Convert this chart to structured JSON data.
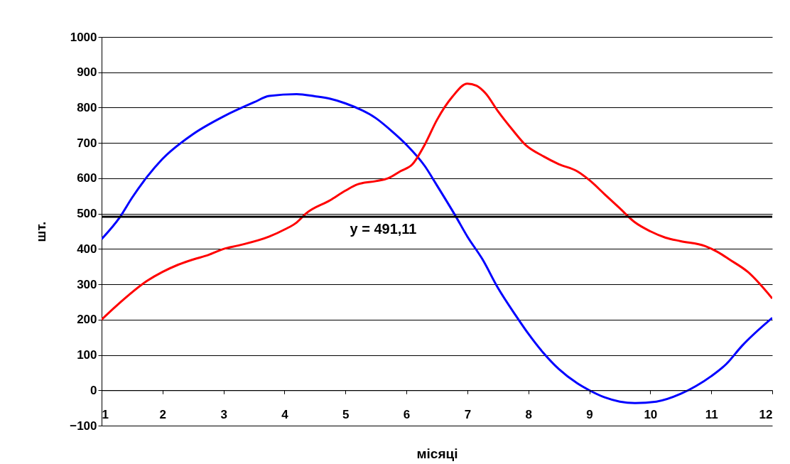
{
  "chart_data": {
    "type": "line",
    "xlabel": "місяці",
    "ylabel": "шт.",
    "xlim": [
      1,
      12
    ],
    "xticks": [
      1,
      2,
      3,
      4,
      5,
      6,
      7,
      8,
      9,
      10,
      11,
      12
    ],
    "ylim": [
      -100,
      1000
    ],
    "yticks": [
      -100,
      0,
      100,
      200,
      300,
      400,
      500,
      600,
      700,
      800,
      900,
      1000
    ],
    "grid": "y",
    "line_style": "solid",
    "series": [
      {
        "color": "#0000ff",
        "x": [
          1,
          1.3,
          1.5,
          1.75,
          2,
          2.5,
          3,
          3.5,
          3.75,
          4.2,
          4.5,
          4.75,
          5,
          5.5,
          5.75,
          6,
          6.3,
          6.5,
          6.8,
          7,
          7.25,
          7.5,
          7.8,
          8,
          8.25,
          8.5,
          8.8,
          9,
          9.25,
          9.5,
          9.75,
          10.1,
          10.5,
          10.75,
          11,
          11.25,
          11.5,
          12
        ],
        "values": [
          428,
          490,
          545,
          605,
          655,
          725,
          775,
          815,
          833,
          838,
          832,
          825,
          812,
          770,
          735,
          695,
          635,
          580,
          495,
          435,
          370,
          290,
          210,
          160,
          105,
          60,
          20,
          0,
          -20,
          -32,
          -36,
          -32,
          -10,
          12,
          40,
          75,
          125,
          205
        ]
      },
      {
        "color": "#ff0000",
        "x": [
          1,
          1.25,
          1.75,
          2,
          2.25,
          2.5,
          2.75,
          3,
          3.25,
          3.75,
          4,
          4.2,
          4.35,
          4.75,
          5,
          5.2,
          5.5,
          5.7,
          5.9,
          6.1,
          6.3,
          6.5,
          6.75,
          7,
          7.15,
          7.3,
          7.5,
          7.75,
          7.95,
          8.25,
          8.5,
          8.8,
          9,
          9.25,
          9.5,
          9.75,
          10,
          10.25,
          10.5,
          10.9,
          11.1,
          11.3,
          11.6,
          12
        ],
        "values": [
          200,
          240,
          310,
          335,
          355,
          370,
          383,
          400,
          410,
          435,
          455,
          475,
          500,
          538,
          565,
          583,
          592,
          600,
          620,
          640,
          695,
          765,
          830,
          868,
          862,
          840,
          790,
          735,
          695,
          662,
          640,
          620,
          595,
          555,
          515,
          475,
          450,
          432,
          422,
          408,
          392,
          370,
          335,
          260
        ]
      }
    ],
    "ref_lines": [
      {
        "axis": "y",
        "value": 491.11,
        "label": "y = 491,11",
        "color": "#000000"
      }
    ]
  }
}
